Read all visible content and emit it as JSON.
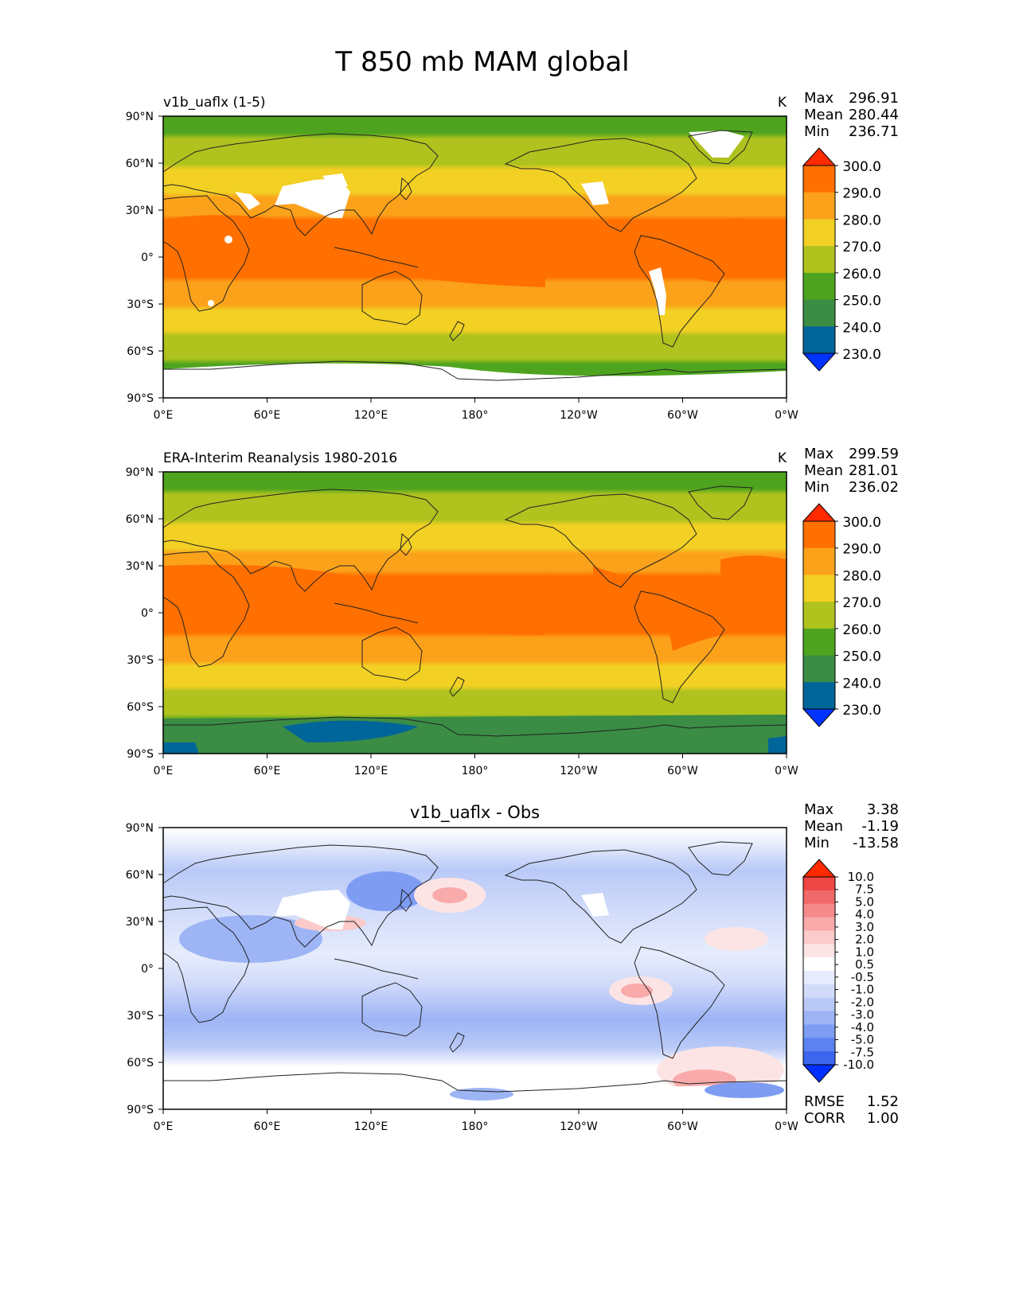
{
  "figure_title": "T 850 mb MAM global",
  "colors": {
    "abs": [
      "#0033ff",
      "#006699",
      "#3b8c45",
      "#4ea41e",
      "#afc21e",
      "#f2d024",
      "#fba21a",
      "#ff7000",
      "#ff2a00"
    ],
    "diff": [
      "#0030ff",
      "#3b66ee",
      "#5b82f0",
      "#7d9cf2",
      "#9db4f5",
      "#b9c9f7",
      "#d2dcfa",
      "#e6ecfc",
      "#ffffff",
      "#fde4e4",
      "#fccaca",
      "#f9aaaa",
      "#f58a8a",
      "#f16868",
      "#ee4545",
      "#ff2a00"
    ],
    "land_outline": "#222222",
    "missing": "#ffffff"
  },
  "axis_ticks": {
    "lon": [
      "0°E",
      "60°E",
      "120°E",
      "180°",
      "120°W",
      "60°W",
      "0°W"
    ],
    "lat": [
      "90°N",
      "60°N",
      "30°N",
      "0°",
      "30°S",
      "60°S",
      "90°S"
    ]
  },
  "panels": [
    {
      "id": "model",
      "left_title": "v1b_uaflx (1-5)",
      "center_title": "",
      "units": "K",
      "stats": {
        "max_label": "Max",
        "max": "296.91",
        "mean_label": "Mean",
        "mean": "280.44",
        "min_label": "Min",
        "min": "236.71"
      },
      "colorbar": [
        "230.0",
        "240.0",
        "250.0",
        "260.0",
        "270.0",
        "280.0",
        "290.0",
        "300.0"
      ],
      "metrics": null
    },
    {
      "id": "obs",
      "left_title": "ERA-Interim Reanalysis 1980-2016",
      "center_title": "",
      "units": "K",
      "stats": {
        "max_label": "Max",
        "max": "299.59",
        "mean_label": "Mean",
        "mean": "281.01",
        "min_label": "Min",
        "min": "236.02"
      },
      "colorbar": [
        "230.0",
        "240.0",
        "250.0",
        "260.0",
        "270.0",
        "280.0",
        "290.0",
        "300.0"
      ],
      "metrics": null
    },
    {
      "id": "diff",
      "left_title": "",
      "center_title": "v1b_uaflx - Obs",
      "units": "",
      "stats": {
        "max_label": "Max",
        "max": "3.38",
        "mean_label": "Mean",
        "mean": "-1.19",
        "min_label": "Min",
        "min": "-13.58"
      },
      "colorbar": [
        "-10.0",
        "-7.5",
        "-5.0",
        "-4.0",
        "-3.0",
        "-2.0",
        "-1.0",
        "-0.5",
        "0.5",
        "1.0",
        "2.0",
        "3.0",
        "4.0",
        "5.0",
        "7.5",
        "10.0"
      ],
      "metrics": {
        "rmse_label": "RMSE",
        "rmse": "1.52",
        "corr_label": "CORR",
        "corr": "1.00"
      }
    }
  ]
}
